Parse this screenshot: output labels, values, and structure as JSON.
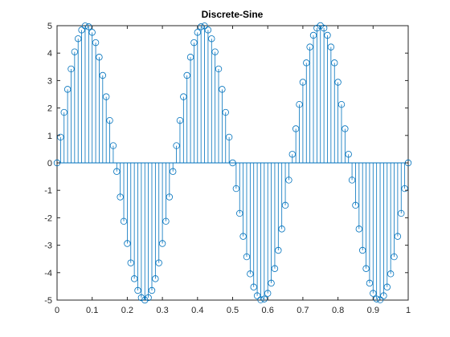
{
  "chart_data": {
    "type": "stem",
    "title": "Discrete-Sine",
    "xlabel": "",
    "ylabel": "",
    "xlim": [
      0,
      1
    ],
    "ylim": [
      -5,
      5
    ],
    "x_ticks": [
      "0",
      "0.1",
      "0.2",
      "0.3",
      "0.4",
      "0.5",
      "0.6",
      "0.7",
      "0.8",
      "0.9",
      "1"
    ],
    "y_ticks": [
      "-5",
      "-4",
      "-3",
      "-2",
      "-1",
      "0",
      "1",
      "2",
      "3",
      "4",
      "5"
    ],
    "grid": false,
    "legend": "none",
    "colors": {
      "series": "#0072BD",
      "axes": "#262626",
      "background": "#ffffff"
    },
    "series": [
      {
        "amplitude": 5,
        "frequency_hz": 3,
        "x_start": 0,
        "x_step": 0.01,
        "x_end": 1
      }
    ]
  }
}
